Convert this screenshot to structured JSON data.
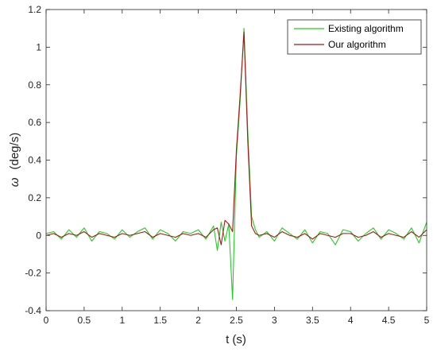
{
  "chart_data": {
    "type": "line",
    "title": "",
    "xlabel": "t (s)",
    "ylabel_symbol": "ω",
    "ylabel_unit": "(deg/s)",
    "xlim": [
      0,
      5
    ],
    "ylim": [
      -0.4,
      1.2
    ],
    "xticks": [
      0,
      0.5,
      1,
      1.5,
      2,
      2.5,
      3,
      3.5,
      4,
      4.5,
      5
    ],
    "xtick_labels": [
      "0",
      "0.5",
      "1",
      "1.5",
      "2",
      "2.5",
      "3",
      "3.5",
      "4",
      "4.5",
      "5"
    ],
    "yticks": [
      -0.4,
      -0.2,
      0,
      0.2,
      0.4,
      0.6,
      0.8,
      1,
      1.2
    ],
    "ytick_labels": [
      "-0.4",
      "-0.2",
      "0",
      "0.2",
      "0.4",
      "0.6",
      "0.8",
      "1",
      "1.2"
    ],
    "grid": false,
    "legend_position": "top-right",
    "series": [
      {
        "name": "Existing algorithm",
        "color": "#22cc22",
        "x": [
          0,
          0.1,
          0.2,
          0.3,
          0.4,
          0.5,
          0.6,
          0.7,
          0.8,
          0.9,
          1.0,
          1.1,
          1.2,
          1.3,
          1.4,
          1.5,
          1.6,
          1.7,
          1.8,
          1.9,
          2.0,
          2.1,
          2.2,
          2.25,
          2.3,
          2.35,
          2.4,
          2.45,
          2.5,
          2.55,
          2.6,
          2.65,
          2.7,
          2.75,
          2.8,
          2.9,
          3.0,
          3.1,
          3.2,
          3.3,
          3.4,
          3.5,
          3.6,
          3.7,
          3.8,
          3.9,
          4.0,
          4.1,
          4.2,
          4.3,
          4.4,
          4.5,
          4.6,
          4.7,
          4.8,
          4.9,
          5.0
        ],
        "y": [
          0.01,
          0.02,
          -0.02,
          0.03,
          -0.01,
          0.04,
          -0.03,
          0.02,
          0.01,
          -0.02,
          0.03,
          -0.01,
          0.02,
          0.04,
          -0.02,
          0.03,
          0.01,
          -0.03,
          0.02,
          0.01,
          0.03,
          -0.02,
          0.05,
          -0.08,
          0.07,
          -0.03,
          0.06,
          -0.34,
          0.42,
          0.72,
          1.1,
          0.55,
          0.1,
          0.03,
          -0.01,
          0.02,
          -0.03,
          0.04,
          0.01,
          -0.02,
          0.03,
          -0.04,
          0.02,
          0.01,
          -0.05,
          0.03,
          0.02,
          -0.03,
          0.01,
          0.04,
          -0.02,
          0.03,
          0.01,
          -0.02,
          0.04,
          -0.04,
          0.07
        ]
      },
      {
        "name": "Our algorithm",
        "color": "#a01818",
        "x": [
          0,
          0.1,
          0.2,
          0.3,
          0.4,
          0.5,
          0.6,
          0.7,
          0.8,
          0.9,
          1.0,
          1.1,
          1.2,
          1.3,
          1.4,
          1.5,
          1.6,
          1.7,
          1.8,
          1.9,
          2.0,
          2.1,
          2.2,
          2.25,
          2.3,
          2.35,
          2.4,
          2.45,
          2.5,
          2.55,
          2.6,
          2.65,
          2.7,
          2.75,
          2.8,
          2.9,
          3.0,
          3.1,
          3.2,
          3.3,
          3.4,
          3.5,
          3.6,
          3.7,
          3.8,
          3.9,
          4.0,
          4.1,
          4.2,
          4.3,
          4.4,
          4.5,
          4.6,
          4.7,
          4.8,
          4.9,
          5.0
        ],
        "y": [
          0.0,
          0.01,
          -0.01,
          0.01,
          0.0,
          0.02,
          -0.01,
          0.01,
          0.0,
          -0.01,
          0.01,
          0.0,
          0.01,
          0.02,
          -0.01,
          0.01,
          0.0,
          -0.01,
          0.01,
          0.0,
          0.01,
          -0.01,
          0.03,
          0.04,
          -0.05,
          0.08,
          0.06,
          0.02,
          0.45,
          0.75,
          1.08,
          0.5,
          0.05,
          0.01,
          0.0,
          0.01,
          -0.01,
          0.02,
          0.0,
          -0.01,
          0.01,
          -0.02,
          0.01,
          0.0,
          -0.01,
          0.01,
          0.01,
          -0.01,
          0.0,
          0.02,
          -0.01,
          0.01,
          0.0,
          -0.01,
          0.02,
          -0.01,
          0.03
        ]
      }
    ]
  }
}
